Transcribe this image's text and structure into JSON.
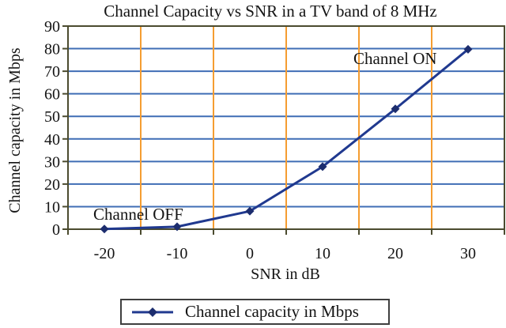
{
  "chart_data": {
    "type": "line",
    "title": "Channel Capacity vs SNR in a TV band of 8 MHz",
    "xlabel": "SNR in dB",
    "ylabel": "Channel capacity in Mbps",
    "categories": [
      -20,
      -10,
      0,
      10,
      20,
      30
    ],
    "xtick_labels": [
      "-20",
      "-10",
      "0",
      "10",
      "20",
      "30"
    ],
    "series": [
      {
        "name": "Channel capacity in Mbps",
        "values": [
          0.1,
          1.1,
          8,
          27.7,
          53.3,
          79.7
        ]
      }
    ],
    "ylim": [
      0,
      90
    ],
    "yticks": [
      0,
      10,
      20,
      30,
      40,
      50,
      60,
      70,
      80,
      90
    ],
    "grid": {
      "horizontal": "on",
      "vertical": "on"
    },
    "legend_position": "bottom",
    "marker": "diamond",
    "annotations": [
      {
        "text": "Channel OFF",
        "near": {
          "x": -12,
          "y": 10
        }
      },
      {
        "text": "Channel ON",
        "near": {
          "x": 16,
          "y": 78
        }
      }
    ],
    "colors": {
      "series_line": "#20398f",
      "marker": "#1c2d6e",
      "h_grid": "#3f6db5",
      "v_grid": "#f59d31",
      "plot_border": "#4b4b2f",
      "text": "#141414",
      "legend_border": "#3f3f3f",
      "background": "#ffffff"
    }
  }
}
